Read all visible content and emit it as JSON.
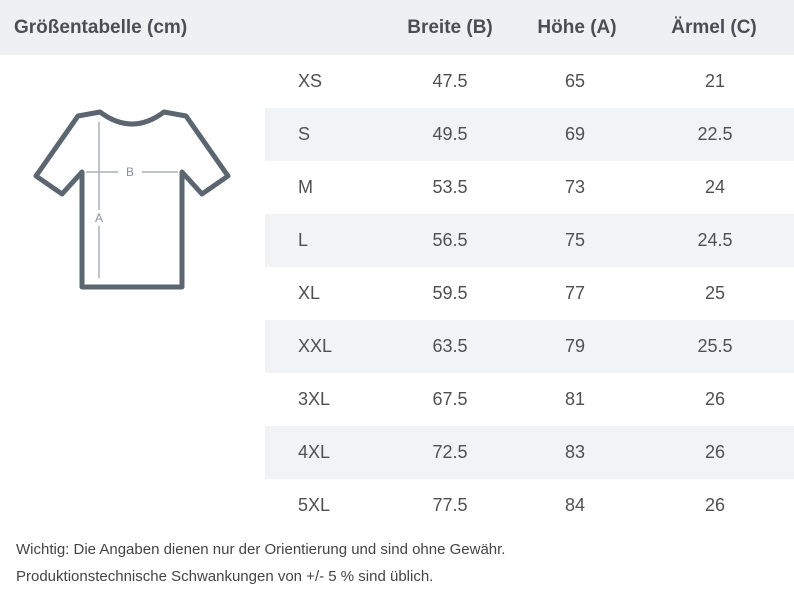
{
  "header": {
    "title": "Größentabelle (cm)",
    "columns": [
      "Breite (B)",
      "Höhe (A)",
      "Ärmel (C)"
    ]
  },
  "diagram": {
    "width_label": "B",
    "height_label": "A"
  },
  "table": {
    "rows": [
      [
        "XS",
        47.5,
        65,
        21
      ],
      [
        "S",
        49.5,
        69,
        22.5
      ],
      [
        "M",
        53.5,
        73,
        24
      ],
      [
        "L",
        56.5,
        75,
        24.5
      ],
      [
        "XL",
        59.5,
        77,
        25
      ],
      [
        "XXL",
        63.5,
        79,
        25.5
      ],
      [
        "3XL",
        67.5,
        81,
        26
      ],
      [
        "4XL",
        72.5,
        83,
        26
      ],
      [
        "5XL",
        77.5,
        84,
        26
      ]
    ]
  },
  "note": [
    "Wichtig: Die Angaben dienen nur der Orientierung und sind ohne Gewähr.",
    "Produktionstechnische Schwankungen von +/- 5 % sind üblich."
  ]
}
